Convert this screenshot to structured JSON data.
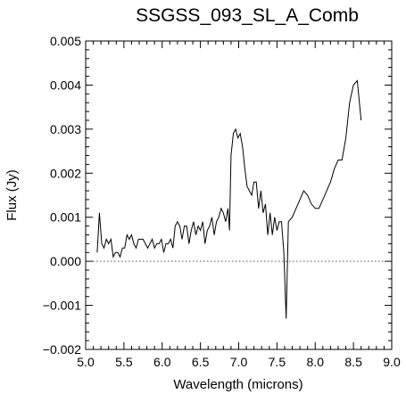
{
  "chart_data": {
    "type": "line",
    "title": "SSGSS_093_SL_A_Comb",
    "xlabel": "Wavelength (microns)",
    "ylabel": "Flux (Jy)",
    "xlim": [
      5.0,
      9.0
    ],
    "ylim": [
      -0.002,
      0.005
    ],
    "xticks": [
      5.0,
      5.5,
      6.0,
      6.5,
      7.0,
      7.5,
      8.0,
      8.5,
      9.0
    ],
    "xtick_labels": [
      "5.0",
      "5.5",
      "6.0",
      "6.5",
      "7.0",
      "7.5",
      "8.0",
      "8.5",
      "9.0"
    ],
    "yticks": [
      -0.002,
      -0.001,
      0.0,
      0.001,
      0.002,
      0.003,
      0.004,
      0.005
    ],
    "ytick_labels": [
      "−0.002",
      "−0.001",
      "0.000",
      "0.001",
      "0.002",
      "0.003",
      "0.004",
      "0.005"
    ],
    "reference_line": {
      "y": 0.0,
      "style": "dotted"
    },
    "grid": false,
    "series": [
      {
        "x": [
          5.15,
          5.18,
          5.21,
          5.24,
          5.27,
          5.3,
          5.33,
          5.36,
          5.39,
          5.42,
          5.45,
          5.48,
          5.51,
          5.54,
          5.57,
          5.6,
          5.63,
          5.66,
          5.69,
          5.72,
          5.75,
          5.78,
          5.81,
          5.84,
          5.87,
          5.9,
          5.93,
          5.96,
          5.99,
          6.02,
          6.05,
          6.08,
          6.11,
          6.14,
          6.17,
          6.2,
          6.23,
          6.26,
          6.29,
          6.32,
          6.35,
          6.38,
          6.41,
          6.44,
          6.47,
          6.5,
          6.53,
          6.56,
          6.59,
          6.62,
          6.65,
          6.68,
          6.71,
          6.74,
          6.77,
          6.8,
          6.83,
          6.86,
          6.88,
          6.9,
          6.93,
          6.96,
          6.99,
          7.02,
          7.05,
          7.08,
          7.11,
          7.14,
          7.17,
          7.2,
          7.23,
          7.26,
          7.29,
          7.32,
          7.35,
          7.38,
          7.41,
          7.44,
          7.47,
          7.5,
          7.53,
          7.56,
          7.59,
          7.62,
          7.65,
          7.7,
          7.75,
          7.8,
          7.85,
          7.9,
          7.95,
          8.0,
          8.05,
          8.1,
          8.15,
          8.2,
          8.25,
          8.3,
          8.35,
          8.4,
          8.45,
          8.5,
          8.55,
          8.6
        ],
        "y": [
          0.0002,
          0.0011,
          0.0004,
          0.0003,
          0.0005,
          0.0004,
          0.0005,
          0.0001,
          0.0002,
          0.0002,
          0.0001,
          0.0003,
          0.0003,
          0.0006,
          0.0005,
          0.0006,
          0.0004,
          0.0003,
          0.0005,
          0.0005,
          0.0005,
          0.0004,
          0.0003,
          0.0004,
          0.0005,
          0.0003,
          0.0004,
          0.0004,
          0.0005,
          0.0002,
          0.0004,
          0.0004,
          0.0005,
          0.0003,
          0.0008,
          0.0009,
          0.0008,
          0.0005,
          0.0008,
          0.0008,
          0.0004,
          0.0007,
          0.0009,
          0.0006,
          0.0008,
          0.0007,
          0.0009,
          0.0004,
          0.0007,
          0.0008,
          0.001,
          0.0006,
          0.0009,
          0.001,
          0.0012,
          0.0011,
          0.0009,
          0.0012,
          0.0007,
          0.0024,
          0.0029,
          0.003,
          0.0028,
          0.0029,
          0.0026,
          0.0021,
          0.0017,
          0.0016,
          0.0015,
          0.0018,
          0.0018,
          0.0012,
          0.0016,
          0.0011,
          0.0013,
          0.0006,
          0.0011,
          0.0006,
          0.001,
          0.0007,
          0.0009,
          0.0009,
          0.0002,
          -0.0013,
          0.0009,
          0.001,
          0.0012,
          0.0014,
          0.0016,
          0.0015,
          0.0013,
          0.0012,
          0.0012,
          0.0014,
          0.0016,
          0.0018,
          0.0021,
          0.0023,
          0.0023,
          0.0028,
          0.0036,
          0.004,
          0.0041,
          0.0032
        ]
      }
    ]
  }
}
